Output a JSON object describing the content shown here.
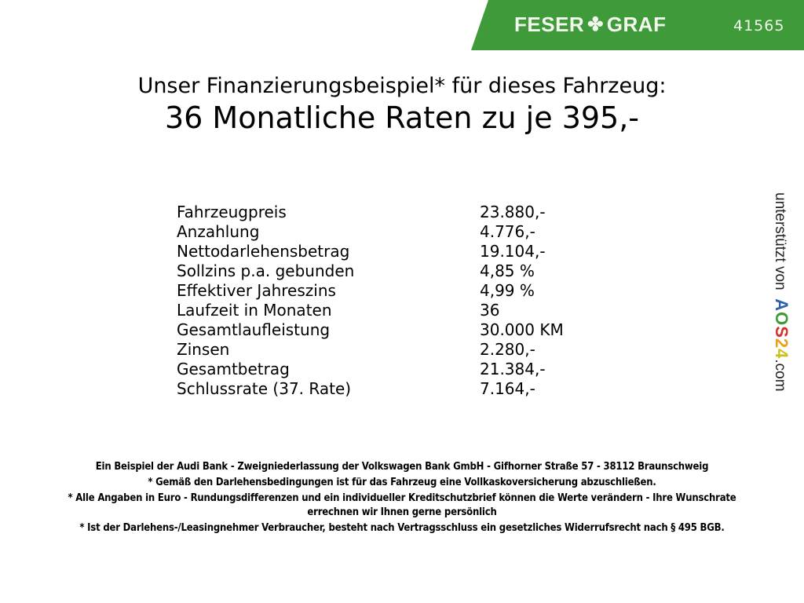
{
  "header": {
    "brand_left": "FESER",
    "brand_right": "GRAF",
    "brand_icon": "clover-icon",
    "dealer_id": "41565",
    "color": "#3f9b3a"
  },
  "title": "Unser Finanzierungsbeispiel* für dieses Fahrzeug:",
  "subtitle": "36 Monatliche Raten zu je 395,-",
  "rows": [
    {
      "label": "Fahrzeugpreis",
      "value": "23.880,-"
    },
    {
      "label": "Anzahlung",
      "value": "4.776,-"
    },
    {
      "label": "Nettodarlehensbetrag",
      "value": "19.104,-"
    },
    {
      "label": "Sollzins p.a. gebunden",
      "value": "4,85 %"
    },
    {
      "label": "Effektiver Jahreszins",
      "value": "4,99 %"
    },
    {
      "label": "Laufzeit in Monaten",
      "value": "36"
    },
    {
      "label": "Gesamtlaufleistung",
      "value": "30.000 KM"
    },
    {
      "label": "Zinsen",
      "value": "2.280,-"
    },
    {
      "label": "Gesamtbetrag",
      "value": "21.384,-"
    },
    {
      "label": "Schlussrate (37. Rate)",
      "value": "7.164,-"
    }
  ],
  "side": {
    "text": "unterstützt von",
    "brand": [
      "A",
      "O",
      "S",
      "2",
      "4"
    ],
    "brand_colors": [
      "#2f5fae",
      "#3e9b3a",
      "#d6322a",
      "#e8a21c",
      "#c9c21d"
    ],
    "suffix": ".com"
  },
  "footer": [
    "Ein Beispiel der Audi Bank - Zweigniederlassung der Volkswagen Bank GmbH - Gifhorner Straße 57 - 38112 Braunschweig",
    "* Gemäß den Darlehensbedingungen ist für das Fahrzeug eine Vollkaskoversicherung abzuschließen.",
    "* Alle Angaben in Euro - Rundungsdifferenzen und ein individueller Kreditschutzbrief können die Werte verändern - Ihre Wunschrate errechnen wir Ihnen gerne persönlich",
    "* Ist der Darlehens-/Leasingnehmer Verbraucher, besteht nach Vertragsschluss ein gesetzliches Widerrufsrecht nach § 495 BGB."
  ]
}
